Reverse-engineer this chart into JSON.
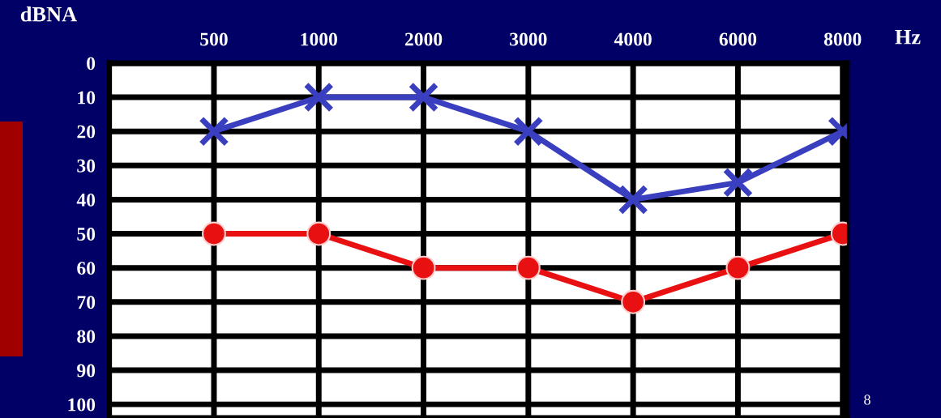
{
  "chart_data": {
    "type": "line",
    "xlabel": "Hz",
    "ylabel": "dBNA",
    "categories": [
      "500",
      "1000",
      "2000",
      "3000",
      "4000",
      "6000",
      "8000"
    ],
    "series": [
      {
        "color": "#3a3fc0",
        "marker": "cross",
        "values": [
          20,
          10,
          10,
          20,
          40,
          35,
          20
        ]
      },
      {
        "color": "#e81010",
        "marker": "circle",
        "values": [
          50,
          50,
          60,
          60,
          70,
          60,
          50
        ]
      }
    ],
    "ylim": [
      104,
      0
    ],
    "yticks": [
      0,
      10,
      20,
      30,
      40,
      50,
      60,
      70,
      80,
      90,
      100
    ],
    "grid": true,
    "line_style": "solid",
    "annotations": [
      "8"
    ]
  }
}
